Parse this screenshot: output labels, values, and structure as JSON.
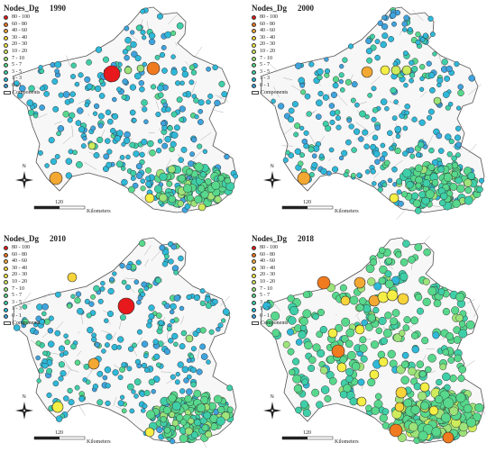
{
  "colors": {
    "c80_100": "#e8191c",
    "c60_80": "#f07a1e",
    "c40_60": "#f2a833",
    "c30_40": "#f6d43a",
    "c20_30": "#f4ee45",
    "c10_20": "#cdeb5c",
    "c7_10": "#9de37a",
    "c5_7": "#57d88c",
    "c3_5": "#3fcfa8",
    "c1_3": "#2fb8d8",
    "c0_1": "#3fa3dd",
    "outline": "#2a2a2a"
  },
  "panels": [
    {
      "id": "p1990",
      "title": "Nodes_Dg",
      "year": "1990",
      "legend": [
        "80 - 100",
        "60 - 80",
        "40 - 60",
        "30 - 40",
        "20 - 30",
        "10 - 20",
        "7 - 10",
        "5 - 7",
        "3 - 5",
        "1 - 3",
        "0 - 1"
      ],
      "components_label": "Components",
      "scale_value": "120",
      "scale_unit": "Kilometers",
      "north": "N"
    },
    {
      "id": "p2000",
      "title": "Nodes_Dg",
      "year": "2000",
      "legend": [
        "80 - 100",
        "60 - 80",
        "40 - 60",
        "30 - 40",
        "20 - 30",
        "10 - 20",
        "7 - 10",
        "5 - 7",
        "3 - 5",
        "1 - 3",
        "0 - 1"
      ],
      "components_label": "Components",
      "scale_value": "120",
      "scale_unit": "Kilometers",
      "north": "N"
    },
    {
      "id": "p2010",
      "title": "Nodes_Dg",
      "year": "2010",
      "legend": [
        "80 - 100",
        "60 - 80",
        "40 - 60",
        "30 - 40",
        "20 - 30",
        "10 - 20",
        "7 - 10",
        "5 - 7",
        "3 - 5",
        "1 - 3",
        "0 - 1"
      ],
      "components_label": "Components",
      "scale_value": "120",
      "scale_unit": "Kilometers",
      "north": "N"
    },
    {
      "id": "p2018",
      "title": "Nodes_Dg",
      "year": "2018",
      "legend": [
        "80 - 100",
        "60 - 80",
        "40 - 60",
        "30 - 40",
        "20 - 30",
        "10 - 20",
        "7 - 10",
        "5 - 7",
        "3 - 5",
        "1 - 3",
        "0 - 1"
      ],
      "components_label": "Components",
      "scale_value": "120",
      "scale_unit": "Kilometers",
      "north": "N"
    }
  ]
}
